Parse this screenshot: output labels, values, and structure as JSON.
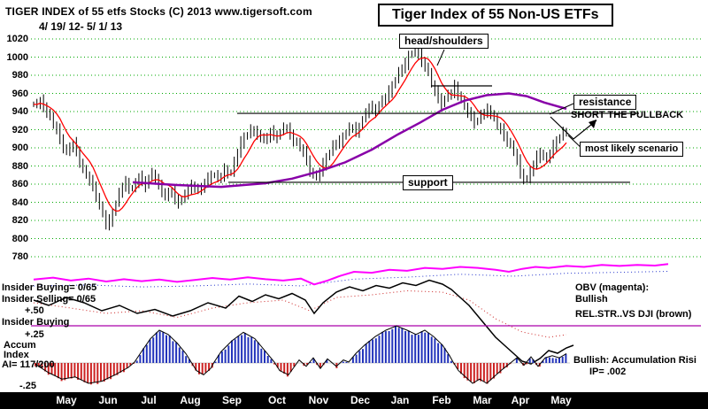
{
  "header": {
    "left_line1": "TIGER INDEX of  55 etfs Stocks  (C) 2013  www.tigersoft.com",
    "left_line2": "4/ 19/ 12- 5/ 1/ 13",
    "title": "Tiger Index of 55 Non-US ETFs"
  },
  "annotations": {
    "head_shoulders": "head/shoulders",
    "resistance": "resistance",
    "short_pullback": "SHORT THE PULLBACK",
    "most_likely": "most likely scenario",
    "support": "support"
  },
  "left_labels": {
    "insider_buying_top": "Insider Buying= 0/65",
    "insider_selling": "Insider Selling= 0/65",
    "plus_50": "+.50",
    "insider_buying_bottom": "Insider Buying",
    "plus_25": "+.25",
    "accum": "Accum",
    "index_lbl": "Index",
    "ai": "AI= 117/200",
    "minus_25": "-.25"
  },
  "right_labels": {
    "obv_line1": "OBV (magenta):",
    "obv_line2": "Bullish",
    "relstr": "REL.STR..VS DJI (brown)",
    "bullish_accum": "Bullish: Accumulation Risi",
    "ip": "IP=  .002"
  },
  "chart_data": {
    "type": "candlestick",
    "title": "Tiger Index of 55 Non-US ETFs",
    "date_range": "4/19/12 - 5/1/13",
    "months": [
      "May",
      "Jun",
      "Jul",
      "Aug",
      "Sep",
      "Oct",
      "Nov",
      "Dec",
      "Jan",
      "Feb",
      "Mar",
      "Apr",
      "May"
    ],
    "month_x": [
      75,
      122,
      168,
      215,
      262,
      313,
      360,
      407,
      452,
      499,
      545,
      588,
      634
    ],
    "price_panel": {
      "ylim": [
        775,
        1030
      ],
      "yticks": [
        1020,
        1000,
        980,
        960,
        940,
        920,
        900,
        880,
        860,
        840,
        820,
        800,
        780
      ],
      "grid": true,
      "resistance_level": 938,
      "support_level": 862,
      "close_anchors": [
        948,
        952,
        940,
        925,
        910,
        895,
        905,
        885,
        870,
        858,
        835,
        815,
        828,
        850,
        862,
        855,
        868,
        858,
        872,
        860,
        845,
        852,
        840,
        848,
        858,
        852,
        862,
        870,
        866,
        876,
        872,
        895,
        912,
        920,
        915,
        908,
        918,
        912,
        922,
        915,
        905,
        895,
        875,
        868,
        882,
        895,
        905,
        912,
        922,
        918,
        932,
        945,
        940,
        952,
        962,
        975,
        988,
        1002,
        1008,
        995,
        982,
        962,
        948,
        958,
        968,
        952,
        938,
        928,
        936,
        942,
        932,
        920,
        908,
        895,
        872,
        865,
        882,
        895,
        888,
        902,
        912,
        918
      ],
      "ma_slow": [
        [
          150,
          862
        ],
        [
          200,
          859
        ],
        [
          250,
          857
        ],
        [
          300,
          861
        ],
        [
          330,
          866
        ],
        [
          360,
          874
        ],
        [
          390,
          884
        ],
        [
          420,
          898
        ],
        [
          450,
          915
        ],
        [
          475,
          928
        ],
        [
          500,
          942
        ],
        [
          525,
          952
        ],
        [
          550,
          958
        ],
        [
          575,
          960
        ],
        [
          595,
          957
        ],
        [
          615,
          950
        ],
        [
          640,
          943
        ]
      ]
    },
    "obv": [
      [
        38,
        0.1
      ],
      [
        60,
        0.2
      ],
      [
        80,
        0.05
      ],
      [
        100,
        0.15
      ],
      [
        120,
        0
      ],
      [
        140,
        0.12
      ],
      [
        160,
        0.02
      ],
      [
        180,
        0.1
      ],
      [
        200,
        -0.02
      ],
      [
        220,
        0.08
      ],
      [
        240,
        0.18
      ],
      [
        260,
        0.1
      ],
      [
        280,
        0.22
      ],
      [
        300,
        0.12
      ],
      [
        320,
        0.05
      ],
      [
        340,
        0.15
      ],
      [
        355,
        -0.15
      ],
      [
        370,
        0.05
      ],
      [
        385,
        0.3
      ],
      [
        400,
        0.5
      ],
      [
        420,
        0.45
      ],
      [
        440,
        0.6
      ],
      [
        460,
        0.55
      ],
      [
        480,
        0.7
      ],
      [
        500,
        0.65
      ],
      [
        520,
        0.75
      ],
      [
        540,
        0.7
      ],
      [
        560,
        0.6
      ],
      [
        575,
        0.5
      ],
      [
        590,
        0.65
      ],
      [
        605,
        0.75
      ],
      [
        620,
        0.7
      ],
      [
        640,
        0.8
      ],
      [
        660,
        0.75
      ],
      [
        680,
        0.85
      ],
      [
        700,
        0.8
      ],
      [
        720,
        0.85
      ],
      [
        740,
        0.82
      ],
      [
        755,
        0.9
      ]
    ],
    "obv_dotted": [
      [
        38,
        0
      ],
      [
        100,
        0.05
      ],
      [
        160,
        -0.05
      ],
      [
        220,
        0
      ],
      [
        280,
        0.1
      ],
      [
        340,
        0
      ],
      [
        400,
        0.35
      ],
      [
        460,
        0.45
      ],
      [
        520,
        0.6
      ],
      [
        580,
        0.5
      ],
      [
        640,
        0.65
      ],
      [
        700,
        0.7
      ],
      [
        755,
        0.75
      ]
    ],
    "rel_strength": [
      [
        38,
        0.2
      ],
      [
        55,
        0
      ],
      [
        75,
        0.3
      ],
      [
        95,
        0.1
      ],
      [
        115,
        -0.2
      ],
      [
        135,
        0
      ],
      [
        155,
        -0.3
      ],
      [
        175,
        -0.15
      ],
      [
        195,
        -0.4
      ],
      [
        215,
        -0.2
      ],
      [
        235,
        0.1
      ],
      [
        255,
        -0.1
      ],
      [
        270,
        0.35
      ],
      [
        285,
        0.15
      ],
      [
        300,
        0.4
      ],
      [
        315,
        0.25
      ],
      [
        330,
        0.45
      ],
      [
        345,
        0.2
      ],
      [
        355,
        -0.3
      ],
      [
        365,
        0.1
      ],
      [
        380,
        0.5
      ],
      [
        395,
        0.7
      ],
      [
        410,
        0.55
      ],
      [
        425,
        0.75
      ],
      [
        440,
        0.65
      ],
      [
        455,
        0.85
      ],
      [
        470,
        0.75
      ],
      [
        485,
        0.95
      ],
      [
        500,
        0.8
      ],
      [
        510,
        0.6
      ],
      [
        520,
        0.3
      ],
      [
        530,
        0
      ],
      [
        540,
        -0.4
      ],
      [
        550,
        -0.8
      ],
      [
        560,
        -1.2
      ],
      [
        570,
        -1.5
      ],
      [
        580,
        -1.8
      ],
      [
        590,
        -2.1
      ],
      [
        600,
        -2.2
      ],
      [
        610,
        -2
      ],
      [
        620,
        -1.7
      ],
      [
        630,
        -1.8
      ],
      [
        640,
        -1.6
      ],
      [
        648,
        -1.5
      ]
    ],
    "rel_dotted": [
      [
        38,
        0.1
      ],
      [
        80,
        -0.1
      ],
      [
        120,
        -0.3
      ],
      [
        160,
        -0.2
      ],
      [
        200,
        -0.45
      ],
      [
        240,
        -0.1
      ],
      [
        280,
        0.1
      ],
      [
        320,
        0.2
      ],
      [
        350,
        -0.2
      ],
      [
        380,
        0.3
      ],
      [
        420,
        0.4
      ],
      [
        460,
        0.55
      ],
      [
        500,
        0.5
      ],
      [
        530,
        0.2
      ],
      [
        560,
        -0.5
      ],
      [
        590,
        -1
      ],
      [
        620,
        -1.2
      ],
      [
        640,
        -1.1
      ]
    ],
    "accum_hist": [
      [
        40,
        -0.02
      ],
      [
        55,
        -0.1
      ],
      [
        70,
        -0.16
      ],
      [
        85,
        -0.14
      ],
      [
        100,
        -0.2
      ],
      [
        115,
        -0.18
      ],
      [
        130,
        -0.12
      ],
      [
        145,
        -0.05
      ],
      [
        152,
        0
      ],
      [
        160,
        0.1
      ],
      [
        170,
        0.22
      ],
      [
        180,
        0.3
      ],
      [
        190,
        0.26
      ],
      [
        200,
        0.18
      ],
      [
        210,
        0.08
      ],
      [
        216,
        0
      ],
      [
        222,
        -0.08
      ],
      [
        230,
        -0.12
      ],
      [
        238,
        -0.06
      ],
      [
        242,
        0
      ],
      [
        250,
        0.1
      ],
      [
        262,
        0.2
      ],
      [
        275,
        0.28
      ],
      [
        288,
        0.22
      ],
      [
        298,
        0.12
      ],
      [
        306,
        0.04
      ],
      [
        310,
        0
      ],
      [
        316,
        -0.08
      ],
      [
        326,
        -0.12
      ],
      [
        332,
        -0.05
      ],
      [
        338,
        0.02
      ],
      [
        346,
        -0.04
      ],
      [
        354,
        0.04
      ],
      [
        362,
        -0.06
      ],
      [
        370,
        0.03
      ],
      [
        380,
        -0.04
      ],
      [
        388,
        0.02
      ],
      [
        394,
        0
      ],
      [
        402,
        0.08
      ],
      [
        412,
        0.16
      ],
      [
        424,
        0.24
      ],
      [
        436,
        0.3
      ],
      [
        448,
        0.34
      ],
      [
        460,
        0.3
      ],
      [
        470,
        0.26
      ],
      [
        480,
        0.3
      ],
      [
        490,
        0.24
      ],
      [
        500,
        0.16
      ],
      [
        508,
        0.06
      ],
      [
        512,
        0
      ],
      [
        518,
        -0.08
      ],
      [
        526,
        -0.14
      ],
      [
        534,
        -0.2
      ],
      [
        542,
        -0.16
      ],
      [
        550,
        -0.2
      ],
      [
        558,
        -0.14
      ],
      [
        566,
        -0.08
      ],
      [
        572,
        -0.04
      ],
      [
        578,
        0
      ],
      [
        584,
        0.04
      ],
      [
        592,
        -0.03
      ],
      [
        600,
        0.05
      ],
      [
        608,
        -0.04
      ],
      [
        616,
        0.04
      ],
      [
        624,
        0.06
      ],
      [
        632,
        0.04
      ],
      [
        640,
        0.08
      ]
    ],
    "colors": {
      "grid": "#00a800",
      "candle": "#000000",
      "ma_fast": "#ff0000",
      "ma_slow": "#8800a8",
      "obv": "#ff00ff",
      "relstr": "#000000",
      "hist_pos": "#2233bb",
      "hist_neg": "#cc2222",
      "hline": "#aa00aa",
      "month_bg": "#000000",
      "month_fg": "#ffffff"
    }
  }
}
